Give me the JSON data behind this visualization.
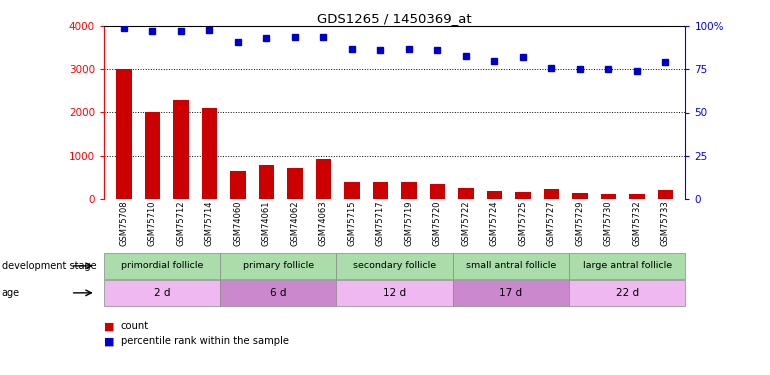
{
  "title": "GDS1265 / 1450369_at",
  "samples": [
    "GSM75708",
    "GSM75710",
    "GSM75712",
    "GSM75714",
    "GSM74060",
    "GSM74061",
    "GSM74062",
    "GSM74063",
    "GSM75715",
    "GSM75717",
    "GSM75719",
    "GSM75720",
    "GSM75722",
    "GSM75724",
    "GSM75725",
    "GSM75727",
    "GSM75729",
    "GSM75730",
    "GSM75732",
    "GSM75733"
  ],
  "counts": [
    3000,
    2020,
    2280,
    2100,
    650,
    780,
    720,
    920,
    380,
    390,
    390,
    350,
    240,
    190,
    160,
    230,
    130,
    120,
    120,
    200
  ],
  "percentiles": [
    99,
    97,
    97,
    98,
    91,
    93,
    94,
    94,
    87,
    86,
    87,
    86,
    83,
    80,
    82,
    76,
    75,
    75,
    74,
    79
  ],
  "bar_color": "#cc0000",
  "dot_color": "#0000cc",
  "ylim_left": [
    0,
    4000
  ],
  "ylim_right": [
    0,
    100
  ],
  "yticks_left": [
    0,
    1000,
    2000,
    3000,
    4000
  ],
  "yticks_right": [
    0,
    25,
    50,
    75,
    100
  ],
  "yticklabels_right": [
    "0",
    "25",
    "50",
    "75",
    "100%"
  ],
  "groups": [
    {
      "label": "primordial follicle",
      "start": 0,
      "end": 4,
      "color": "#aaddaa"
    },
    {
      "label": "primary follicle",
      "start": 4,
      "end": 8,
      "color": "#aaddaa"
    },
    {
      "label": "secondary follicle",
      "start": 8,
      "end": 12,
      "color": "#aaddaa"
    },
    {
      "label": "small antral follicle",
      "start": 12,
      "end": 16,
      "color": "#aaddaa"
    },
    {
      "label": "large antral follicle",
      "start": 16,
      "end": 20,
      "color": "#aaddaa"
    }
  ],
  "age_colors": [
    "#f0b8f0",
    "#cc88cc",
    "#f0b8f0",
    "#cc88cc",
    "#f0b8f0"
  ],
  "ages": [
    {
      "label": "2 d",
      "start": 0,
      "end": 4
    },
    {
      "label": "6 d",
      "start": 4,
      "end": 8
    },
    {
      "label": "12 d",
      "start": 8,
      "end": 12
    },
    {
      "label": "17 d",
      "start": 12,
      "end": 16
    },
    {
      "label": "22 d",
      "start": 16,
      "end": 20
    }
  ],
  "dev_stage_label": "development stage",
  "age_label": "age",
  "legend_count": "count",
  "legend_pct": "percentile rank within the sample"
}
